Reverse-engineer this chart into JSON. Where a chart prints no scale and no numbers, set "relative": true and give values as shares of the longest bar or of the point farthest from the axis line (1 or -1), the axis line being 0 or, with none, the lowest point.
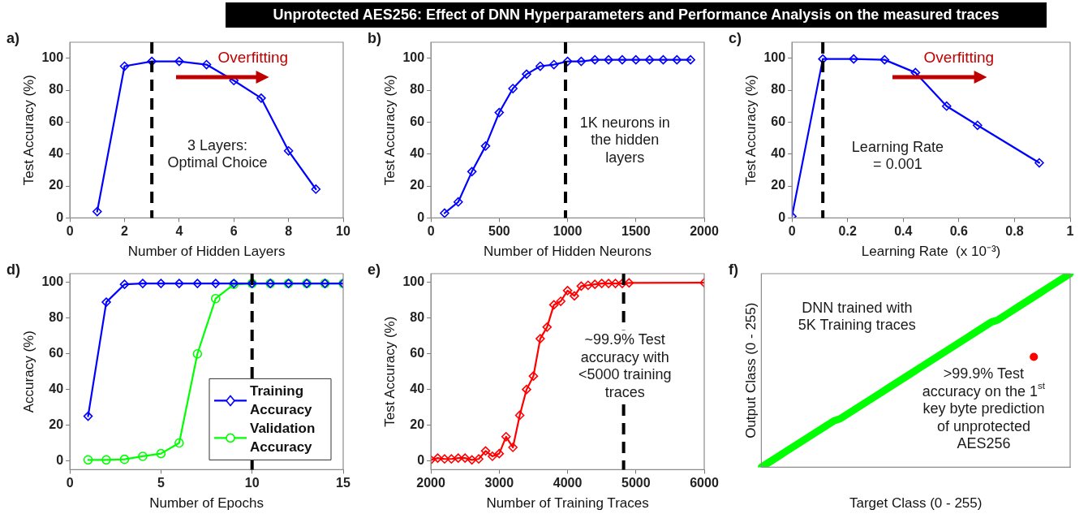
{
  "chart_data": [
    {
      "type": "line",
      "title": "Unprotected AES256: Effect of DNN Hyperparameters and Performance Analysis on the measured traces",
      "xlabel": "Number of Hidden Layers",
      "ylabel": "Test Accuracy (%)",
      "x": [
        1,
        2,
        3,
        4,
        5,
        6,
        7,
        8,
        9
      ],
      "series": [
        {
          "color": "#0000ff",
          "values": [
            4,
            95,
            98,
            98,
            96,
            86,
            75,
            42,
            18
          ]
        }
      ],
      "xlim": [
        0,
        10
      ],
      "xticks": [
        0,
        2,
        4,
        6,
        8,
        10
      ],
      "ylim": [
        0,
        110
      ],
      "yticks": [
        0,
        20,
        40,
        60,
        80,
        100
      ],
      "marker": "diamond",
      "ref_lines": [
        {
          "axis": "x",
          "value": 3,
          "color": "#000000",
          "line_style": "dashed"
        }
      ],
      "annotations": [
        "a)",
        "Overfitting",
        "3 Layers:\nOptimal Choice"
      ]
    },
    {
      "type": "line",
      "xlabel": "Number of Hidden Neurons",
      "ylabel": "Test Accuracy (%)",
      "x": [
        100,
        200,
        300,
        400,
        500,
        600,
        700,
        800,
        900,
        1000,
        1100,
        1200,
        1300,
        1400,
        1500,
        1600,
        1700,
        1800,
        1900
      ],
      "series": [
        {
          "color": "#0000ff",
          "values": [
            3,
            10,
            29,
            45,
            66,
            81,
            90,
            95,
            96,
            98,
            98,
            99,
            99,
            99,
            99,
            99,
            99,
            99,
            99
          ]
        }
      ],
      "xlim": [
        0,
        2000
      ],
      "xticks": [
        0,
        500,
        1000,
        1500,
        2000
      ],
      "ylim": [
        0,
        110
      ],
      "yticks": [
        0,
        20,
        40,
        60,
        80,
        100
      ],
      "marker": "diamond",
      "ref_lines": [
        {
          "axis": "x",
          "value": 985,
          "color": "#000000",
          "line_style": "dashed"
        }
      ],
      "annotations": [
        "b)",
        "1K neurons in\nthe hidden\nlayers"
      ]
    },
    {
      "type": "line",
      "xlabel": "Learning Rate  (x 10⁻³)",
      "ylabel": "Test Accuracy (%)",
      "x": [
        0,
        0.111,
        0.222,
        0.333,
        0.444,
        0.556,
        0.667,
        0.889
      ],
      "series": [
        {
          "color": "#0000ff",
          "values": [
            1,
            99.5,
            99.5,
            99,
            91,
            70,
            58,
            34.5
          ]
        }
      ],
      "xlim": [
        0,
        1
      ],
      "xticks": [
        0,
        0.2,
        0.4,
        0.6,
        0.8,
        1
      ],
      "ylim": [
        0,
        110
      ],
      "yticks": [
        0,
        20,
        40,
        60,
        80,
        100
      ],
      "marker": "diamond",
      "ref_lines": [
        {
          "axis": "x",
          "value": 0.111,
          "color": "#000000",
          "line_style": "dashed"
        }
      ],
      "annotations": [
        "c)",
        "Overfitting",
        "Learning Rate\n= 0.001"
      ]
    },
    {
      "type": "line",
      "xlabel": "Number of Epochs",
      "ylabel": "Accuracy (%)",
      "x": [
        1,
        2,
        3,
        4,
        5,
        6,
        7,
        8,
        9,
        10,
        11,
        12,
        13,
        14,
        15
      ],
      "series": [
        {
          "name": "Training Accuracy",
          "color": "#0000ff",
          "marker": "diamond",
          "values": [
            25,
            89,
            99,
            99.5,
            99.5,
            99.5,
            99.5,
            99.5,
            99.5,
            99.5,
            99.5,
            99.5,
            99.5,
            99.5,
            99.5
          ]
        },
        {
          "name": "Validation Accuracy",
          "color": "#00ff00",
          "marker": "circle",
          "values": [
            0.5,
            0.5,
            0.8,
            2.5,
            4,
            10,
            60,
            91,
            99,
            99.5,
            99.5,
            99.5,
            99.5,
            99.5,
            99.5
          ]
        }
      ],
      "xlim": [
        0,
        15
      ],
      "xticks": [
        0,
        5,
        10,
        15
      ],
      "ylim": [
        -5,
        105
      ],
      "yticks": [
        0,
        20,
        40,
        60,
        80,
        100
      ],
      "legend": "bottom right",
      "ref_lines": [
        {
          "axis": "x",
          "value": 10,
          "color": "#000000",
          "line_style": "dashed"
        }
      ],
      "annotations": [
        "d)"
      ]
    },
    {
      "type": "line",
      "xlabel": "Number of Training Traces",
      "ylabel": "Test Accuracy (%)",
      "x": [
        2000,
        2100,
        2200,
        2300,
        2400,
        2500,
        2600,
        2700,
        2800,
        2900,
        3000,
        3100,
        3200,
        3300,
        3400,
        3500,
        3600,
        3700,
        3800,
        3900,
        4000,
        4100,
        4200,
        4300,
        4400,
        4500,
        4600,
        4700,
        4800,
        4900,
        6000
      ],
      "series": [
        {
          "color": "#ff0000",
          "values": [
            0.5,
            1.5,
            1,
            1,
            1.5,
            1.5,
            0.5,
            1,
            5.5,
            2.5,
            4,
            13.5,
            7.5,
            25.5,
            40,
            47.5,
            68.5,
            75,
            87.5,
            89.5,
            95.5,
            92.5,
            98,
            98.5,
            99,
            99.5,
            99.5,
            99.5,
            99.5,
            99.8,
            99.9
          ]
        }
      ],
      "xlim": [
        2000,
        6000
      ],
      "xticks": [
        2000,
        3000,
        4000,
        5000,
        6000
      ],
      "ylim": [
        -5,
        105
      ],
      "yticks": [
        0,
        20,
        40,
        60,
        80,
        100
      ],
      "marker": "diamond",
      "ref_lines": [
        {
          "axis": "x",
          "value": 4820,
          "color": "#000000",
          "line_style": "dashed"
        }
      ],
      "annotations": [
        "e)",
        "~99.9% Test\naccuracy with\n<5000 training\ntraces"
      ]
    },
    {
      "type": "line",
      "xlabel": "Target Class (0 - 255)",
      "ylabel": "Output Class (0 - 255)",
      "relative": true,
      "marker": "none",
      "categories": [
        null,
        null,
        null,
        null,
        null,
        null,
        null,
        null,
        null,
        null,
        null,
        null,
        null,
        null,
        null,
        null,
        null,
        null,
        null,
        null,
        null,
        null,
        null,
        null,
        null,
        null,
        null,
        null,
        null,
        null,
        null,
        null,
        null,
        null,
        null,
        null,
        null,
        null,
        null,
        null,
        null,
        null,
        null,
        null,
        null,
        null,
        null,
        null,
        null,
        null,
        null,
        null
      ],
      "series": [
        {
          "color": "#00ff00",
          "values": [
            0,
            0.02,
            0.04,
            0.06,
            0.08,
            0.1,
            0.12,
            0.14,
            0.16,
            0.18,
            0.2,
            0.22,
            0.24,
            0.25,
            0.27,
            0.29,
            0.31,
            0.33,
            0.35,
            0.37,
            0.39,
            0.41,
            0.43,
            0.45,
            0.47,
            0.49,
            0.51,
            0.53,
            0.55,
            0.57,
            0.59,
            0.61,
            0.63,
            0.65,
            0.67,
            0.69,
            0.71,
            0.73,
            0.75,
            0.76,
            0.78,
            0.8,
            0.82,
            0.84,
            0.86,
            0.88,
            0.9,
            0.92,
            0.94,
            0.96,
            0.98,
            1
          ]
        },
        {
          "color": "#ff0000",
          "marker": "circle",
          "values": [
            null,
            null,
            null,
            null,
            null,
            null,
            null,
            null,
            null,
            null,
            null,
            null,
            null,
            null,
            null,
            null,
            null,
            null,
            null,
            null,
            null,
            null,
            null,
            null,
            null,
            null,
            null,
            null,
            null,
            null,
            null,
            null,
            null,
            null,
            null,
            null,
            null,
            null,
            null,
            null,
            null,
            null,
            null,
            null,
            null,
            0.57,
            null,
            null,
            null,
            null,
            null,
            null
          ]
        }
      ],
      "annotations": [
        "f)",
        "DNN trained with\n5K Training traces",
        ">99.9% Test\naccuracy on the 1$^{st}$\nkey byte prediction\nof unprotected\nAES256"
      ]
    }
  ]
}
